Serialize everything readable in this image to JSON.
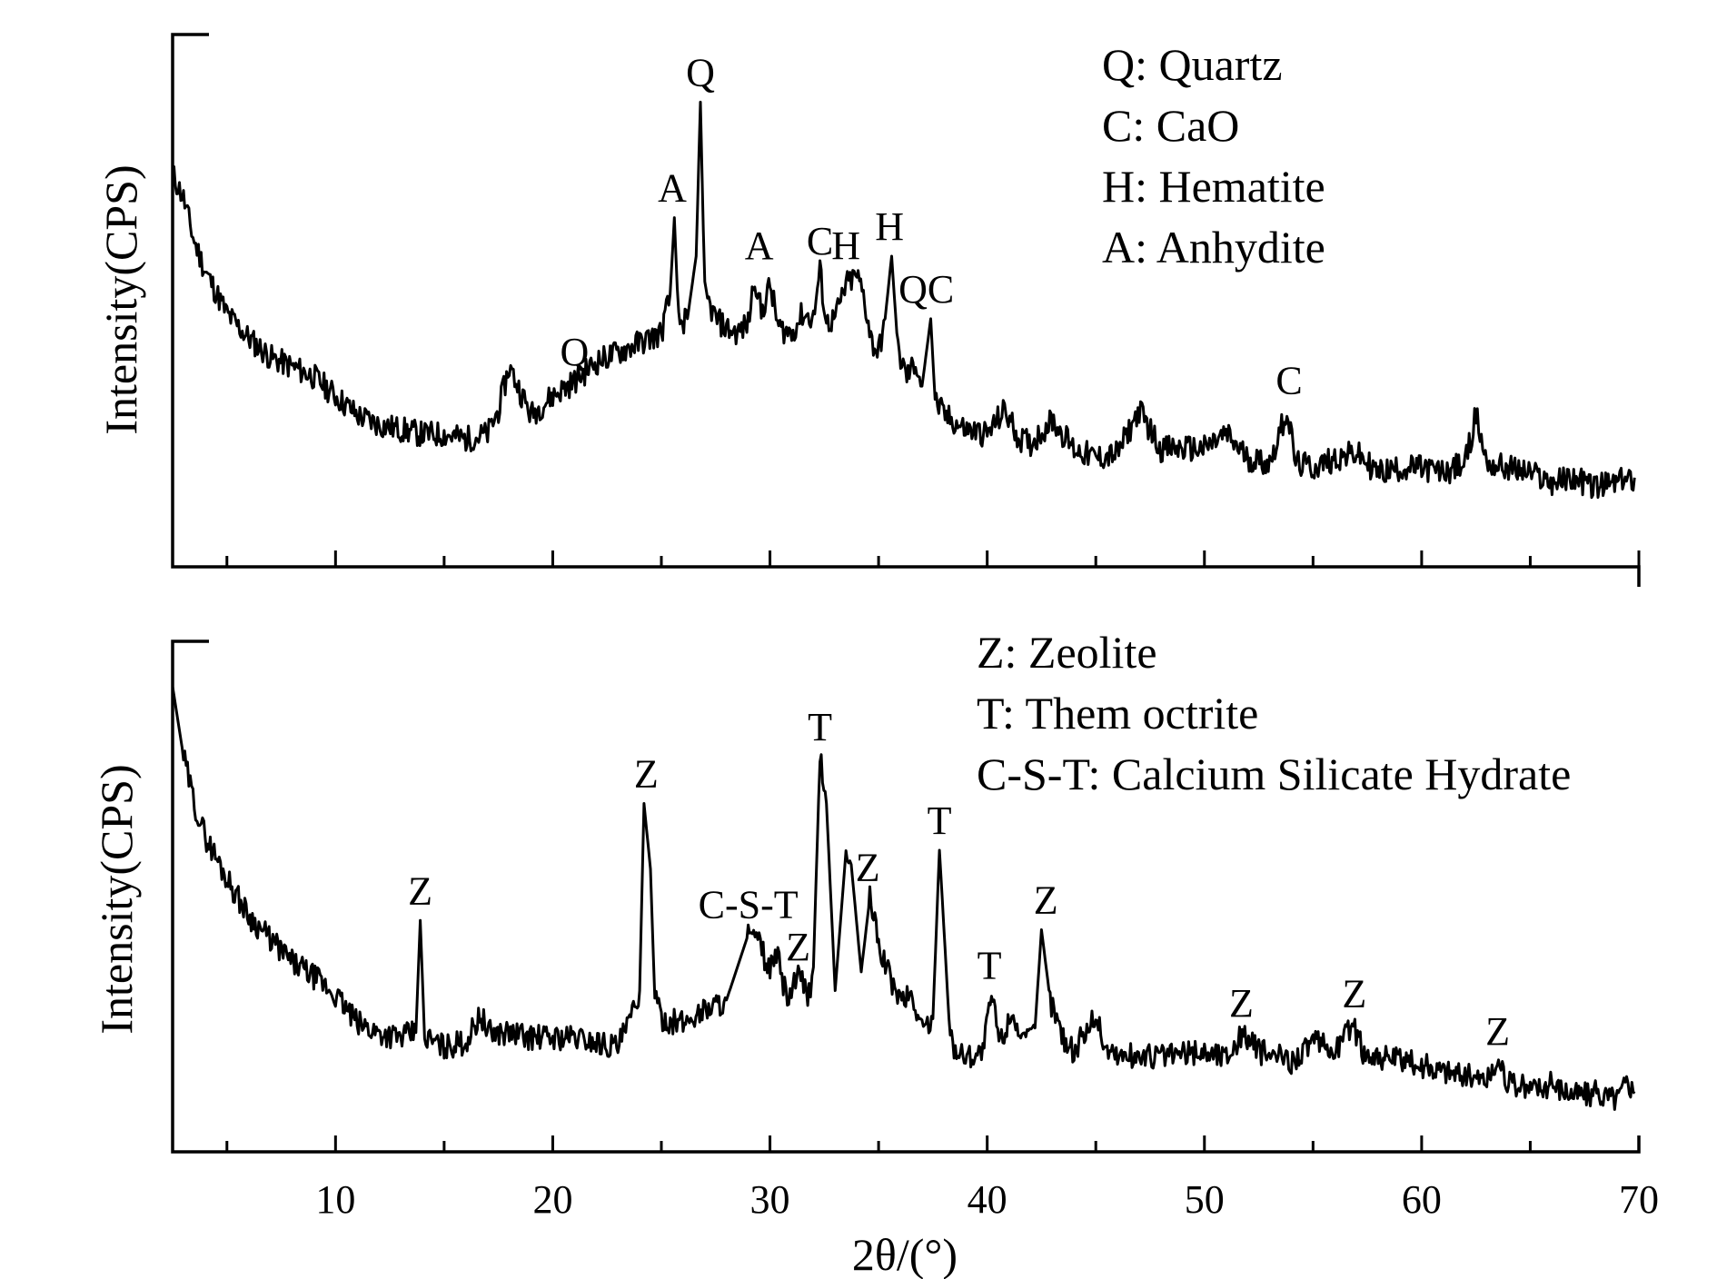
{
  "chart_data": [
    {
      "type": "line",
      "panel": "top",
      "ylabel": "Intensity(CPS)",
      "xlim": [
        2.5,
        70
      ],
      "ylim": [
        0,
        100
      ],
      "legend": [
        "Q: Quartz",
        "C: CaO",
        "H: Hematite",
        "A: Anhydite"
      ],
      "legend_position": "top-right",
      "anchors": [
        [
          2.5,
          77
        ],
        [
          3,
          72
        ],
        [
          3.5,
          63
        ],
        [
          4,
          57
        ],
        [
          5,
          48
        ],
        [
          6,
          43
        ],
        [
          7,
          39
        ],
        [
          8,
          37
        ],
        [
          9,
          35
        ],
        [
          10,
          31
        ],
        [
          11,
          27
        ],
        [
          12,
          25
        ],
        [
          13,
          24
        ],
        [
          14,
          23
        ],
        [
          15,
          23
        ],
        [
          16,
          22
        ],
        [
          17,
          23
        ],
        [
          17.5,
          28
        ],
        [
          18,
          37
        ],
        [
          18.5,
          32
        ],
        [
          19,
          27
        ],
        [
          20,
          31
        ],
        [
          21,
          34
        ],
        [
          22,
          38
        ],
        [
          23,
          40
        ],
        [
          24,
          42
        ],
        [
          25,
          44
        ],
        [
          25.4,
          52
        ],
        [
          25.6,
          68
        ],
        [
          25.8,
          46
        ],
        [
          26.2,
          47
        ],
        [
          26.6,
          60
        ],
        [
          26.8,
          92
        ],
        [
          27,
          52
        ],
        [
          27.5,
          47
        ],
        [
          28,
          45
        ],
        [
          28.5,
          44
        ],
        [
          29,
          46
        ],
        [
          29.3,
          56
        ],
        [
          29.6,
          48
        ],
        [
          30,
          54
        ],
        [
          30.4,
          45
        ],
        [
          31,
          44
        ],
        [
          31.5,
          48
        ],
        [
          32,
          47
        ],
        [
          32.3,
          57
        ],
        [
          32.6,
          46
        ],
        [
          33,
          47
        ],
        [
          33.5,
          54
        ],
        [
          34,
          56
        ],
        [
          34.3,
          52
        ],
        [
          34.7,
          42
        ],
        [
          35,
          40
        ],
        [
          35.3,
          47
        ],
        [
          35.6,
          60
        ],
        [
          35.9,
          40
        ],
        [
          36.3,
          35
        ],
        [
          36.7,
          38
        ],
        [
          37,
          33
        ],
        [
          37.4,
          47
        ],
        [
          37.6,
          30
        ],
        [
          38,
          27
        ],
        [
          39,
          24
        ],
        [
          40,
          23
        ],
        [
          40.8,
          28
        ],
        [
          41.5,
          22
        ],
        [
          42,
          21
        ],
        [
          43,
          26
        ],
        [
          44,
          20
        ],
        [
          45,
          18
        ],
        [
          46,
          19
        ],
        [
          47,
          28
        ],
        [
          48,
          20
        ],
        [
          50,
          20
        ],
        [
          51,
          23
        ],
        [
          52,
          18
        ],
        [
          53,
          17
        ],
        [
          53.8,
          28
        ],
        [
          54.2,
          17
        ],
        [
          55,
          16
        ],
        [
          56,
          18
        ],
        [
          57,
          19
        ],
        [
          58,
          15
        ],
        [
          59,
          16
        ],
        [
          60,
          16
        ],
        [
          61,
          15
        ],
        [
          62,
          17
        ],
        [
          62.5,
          27
        ],
        [
          63,
          17
        ],
        [
          64,
          16
        ],
        [
          65,
          15
        ],
        [
          66,
          13
        ],
        [
          67,
          14
        ],
        [
          68,
          12
        ],
        [
          69,
          13
        ],
        [
          69.8,
          14
        ]
      ],
      "annotations": [
        {
          "text": "Q",
          "x": 26.8
        },
        {
          "text": "A",
          "x": 25.5
        },
        {
          "text": "Q",
          "x": 21.0
        },
        {
          "text": "A",
          "x": 29.5
        },
        {
          "text": "C",
          "x": 32.3
        },
        {
          "text": "H",
          "x": 33.5
        },
        {
          "text": "H",
          "x": 35.5
        },
        {
          "text": "QC",
          "x": 37.2
        },
        {
          "text": "C",
          "x": 53.9
        }
      ]
    },
    {
      "type": "line",
      "panel": "bottom",
      "xlabel": "2θ/(°)",
      "ylabel": "Intensity(CPS)",
      "xlim": [
        2.5,
        70
      ],
      "ylim": [
        0,
        100
      ],
      "xticks": [
        10,
        20,
        30,
        40,
        50,
        60,
        70
      ],
      "legend": [
        "Z: Zeolite",
        "T: Them octrite",
        "C-S-T: Calcium Silicate Hydrate"
      ],
      "legend_position": "top-right",
      "anchors": [
        [
          2.5,
          95
        ],
        [
          3,
          80
        ],
        [
          3.5,
          70
        ],
        [
          4,
          63
        ],
        [
          5,
          54
        ],
        [
          6,
          46
        ],
        [
          7,
          41
        ],
        [
          8,
          36
        ],
        [
          9,
          33
        ],
        [
          10,
          29
        ],
        [
          11,
          23
        ],
        [
          12,
          21
        ],
        [
          13,
          20
        ],
        [
          13.7,
          21
        ],
        [
          13.9,
          45
        ],
        [
          14.1,
          20
        ],
        [
          15,
          18
        ],
        [
          16,
          19
        ],
        [
          16.7,
          25
        ],
        [
          17,
          21
        ],
        [
          18,
          21
        ],
        [
          19,
          20
        ],
        [
          20,
          20
        ],
        [
          21,
          20
        ],
        [
          22,
          19
        ],
        [
          23,
          18
        ],
        [
          23.6,
          24
        ],
        [
          24,
          30
        ],
        [
          24.2,
          70
        ],
        [
          24.5,
          56
        ],
        [
          24.7,
          28
        ],
        [
          25,
          24
        ],
        [
          26,
          23
        ],
        [
          27,
          26
        ],
        [
          28,
          28
        ],
        [
          29,
          42
        ],
        [
          29.5,
          40
        ],
        [
          30,
          34
        ],
        [
          30.3,
          38
        ],
        [
          30.8,
          28
        ],
        [
          31.3,
          33
        ],
        [
          31.8,
          29
        ],
        [
          32,
          35
        ],
        [
          32.3,
          80
        ],
        [
          32.6,
          70
        ],
        [
          33,
          30
        ],
        [
          33.5,
          60
        ],
        [
          33.8,
          54
        ],
        [
          34.2,
          34
        ],
        [
          34.6,
          50
        ],
        [
          35,
          40
        ],
        [
          35.5,
          33
        ],
        [
          36,
          28
        ],
        [
          36.5,
          29
        ],
        [
          37,
          22
        ],
        [
          37.5,
          24
        ],
        [
          37.8,
          60
        ],
        [
          38,
          44
        ],
        [
          38.3,
          19
        ],
        [
          39,
          16
        ],
        [
          39.8,
          17
        ],
        [
          40.2,
          29
        ],
        [
          40.6,
          19
        ],
        [
          41.2,
          26
        ],
        [
          41.6,
          18
        ],
        [
          42.2,
          22
        ],
        [
          42.5,
          43
        ],
        [
          42.9,
          28
        ],
        [
          43.5,
          20
        ],
        [
          44,
          17
        ],
        [
          45,
          25
        ],
        [
          45.4,
          18
        ],
        [
          46,
          16
        ],
        [
          48,
          16
        ],
        [
          50,
          17
        ],
        [
          51,
          16
        ],
        [
          51.8,
          21
        ],
        [
          52.5,
          17
        ],
        [
          54,
          15
        ],
        [
          55,
          19
        ],
        [
          56,
          17
        ],
        [
          56.8,
          23
        ],
        [
          57.3,
          17
        ],
        [
          58,
          16
        ],
        [
          59,
          15
        ],
        [
          60,
          14
        ],
        [
          61,
          13
        ],
        [
          62,
          12
        ],
        [
          63,
          11
        ],
        [
          63.6,
          15
        ],
        [
          64,
          10
        ],
        [
          65,
          9
        ],
        [
          66,
          10
        ],
        [
          67,
          8
        ],
        [
          68,
          8
        ],
        [
          69,
          7
        ],
        [
          69.5,
          11
        ],
        [
          69.8,
          8
        ]
      ],
      "annotations": [
        {
          "text": "Z",
          "x": 13.9
        },
        {
          "text": "Z",
          "x": 24.3
        },
        {
          "text": "C-S-T",
          "x": 29.0
        },
        {
          "text": "T",
          "x": 32.3
        },
        {
          "text": "Z",
          "x": 31.3
        },
        {
          "text": "Z",
          "x": 34.5
        },
        {
          "text": "T",
          "x": 37.8
        },
        {
          "text": "T",
          "x": 40.1
        },
        {
          "text": "Z",
          "x": 42.7
        },
        {
          "text": "Z",
          "x": 51.7
        },
        {
          "text": "Z",
          "x": 56.9
        },
        {
          "text": "Z",
          "x": 63.5
        }
      ]
    }
  ]
}
